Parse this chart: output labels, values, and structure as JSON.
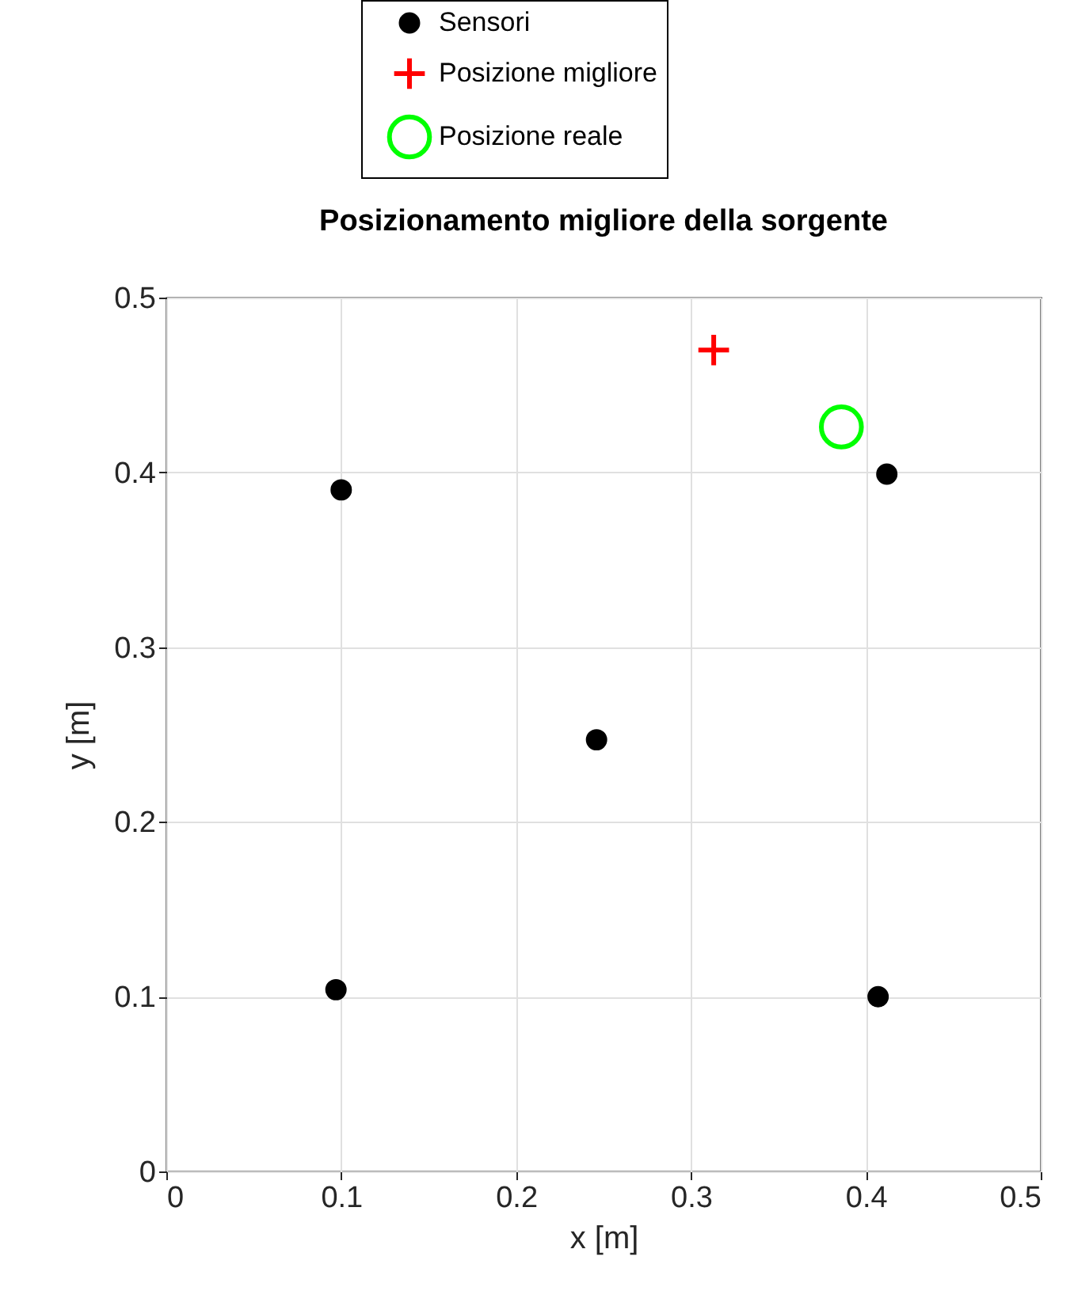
{
  "chart_data": {
    "type": "scatter",
    "title": "Posizionamento migliore della sorgente",
    "xlabel": "x [m]",
    "ylabel": "y [m]",
    "xlim": [
      0,
      0.5
    ],
    "ylim": [
      0,
      0.5
    ],
    "xticks": [
      0,
      0.1,
      0.2,
      0.3,
      0.4,
      0.5
    ],
    "yticks": [
      0,
      0.1,
      0.2,
      0.3,
      0.4,
      0.5
    ],
    "grid": true,
    "legend": "top",
    "series": [
      {
        "name": "Sensori",
        "color": "#000000",
        "marker": "circle",
        "x": [
          0.1,
          0.246,
          0.097,
          0.412,
          0.407
        ],
        "values": [
          0.39,
          0.247,
          0.104,
          0.399,
          0.1
        ]
      },
      {
        "name": "Posizione migliore",
        "color": "#ff0000",
        "marker": "cross",
        "x": [
          0.313
        ],
        "values": [
          0.47
        ]
      },
      {
        "name": "Posizione reale",
        "color": "#00ff00",
        "marker": "circle",
        "x": [
          0.386
        ],
        "values": [
          0.426
        ]
      }
    ]
  }
}
